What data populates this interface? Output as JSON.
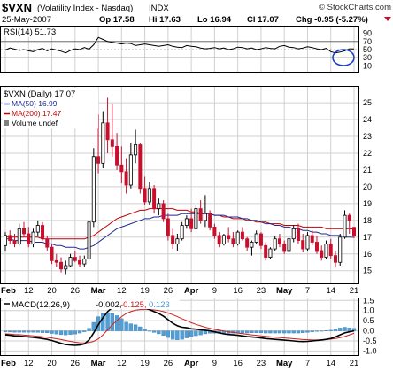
{
  "header": {
    "symbol": "$VXN",
    "name": "(Volatility Index - Nasdaq)",
    "exchange": "INDX",
    "source": "© StockCharts.com",
    "date": "25-May-2007",
    "open": "Op 17.58",
    "high": "Hi 17.63",
    "low": "Lo 16.94",
    "close": "Cl 17.07",
    "change": "Chg -0.95 (-5.27%)"
  },
  "rsi_panel": {
    "label": "RSI(14) 51.73",
    "ticks": [
      "90",
      "70",
      "50",
      "30",
      "10"
    ]
  },
  "price_panel": {
    "label": "$VXN (Daily) 17.07",
    "legend": [
      {
        "label": "MA(50) 16.99",
        "color": "#1f2a8c"
      },
      {
        "label": "MA(200) 17.47",
        "color": "#c00000"
      },
      {
        "label": "Volume undef",
        "color": "#808080"
      }
    ],
    "ticks": [
      "25",
      "24",
      "23",
      "22",
      "21",
      "20",
      "19",
      "18",
      "17",
      "16",
      "15"
    ]
  },
  "macd_panel": {
    "label": "MACD(12,26,9)",
    "value1": "-0.002,",
    "value2": "-0.125,",
    "value3": "0.123",
    "ticks": [
      "1.5",
      "1.0",
      "0.5",
      "0.0",
      "-0.5",
      "-1.0"
    ]
  },
  "x_axis": {
    "labels": [
      "Feb",
      "12",
      "20",
      "26",
      "Mar",
      "12",
      "19",
      "26",
      "Apr",
      "9",
      "16",
      "23",
      "May",
      "7",
      "14",
      "21"
    ]
  },
  "colors": {
    "up": "#000000",
    "down": "#c8102e",
    "ma50": "#1f2a8c",
    "ma200": "#c00000",
    "macd": "#000000",
    "signal": "#d02020",
    "histogram": "#4f9fd6",
    "grid": "#d0d0d0"
  },
  "chart_data": [
    {
      "type": "line",
      "name": "RSI(14)",
      "ylim": [
        0,
        100
      ],
      "reference_lines": [
        70,
        50,
        30
      ],
      "values": [
        49,
        54,
        51,
        48,
        50,
        47,
        45,
        50,
        53,
        47,
        52,
        49,
        46,
        42,
        48,
        52,
        50,
        55,
        51,
        62,
        80,
        75,
        70,
        68,
        66,
        64,
        66,
        65,
        60,
        62,
        64,
        62,
        60,
        58,
        60,
        62,
        58,
        56,
        55,
        60,
        58,
        57,
        54,
        52,
        53,
        55,
        52,
        54,
        50,
        52,
        56,
        55,
        52,
        54,
        50,
        52,
        55,
        53,
        52,
        58,
        60,
        56,
        55,
        52,
        54,
        57,
        55,
        52,
        50,
        53,
        45,
        42,
        44,
        47,
        52,
        51.73
      ]
    },
    {
      "type": "candlestick",
      "name": "$VXN (Daily)",
      "ylim": [
        14.3,
        25.9
      ],
      "x_labels": [
        "Feb",
        "12",
        "20",
        "26",
        "Mar",
        "12",
        "19",
        "26",
        "Apr",
        "9",
        "16",
        "23",
        "May",
        "7",
        "14",
        "21"
      ],
      "candles": [
        [
          16.5,
          17.3,
          16.2,
          17.1
        ],
        [
          17.1,
          17.4,
          16.6,
          16.8
        ],
        [
          16.8,
          17.2,
          16.4,
          16.6
        ],
        [
          16.6,
          17.8,
          16.5,
          17.5
        ],
        [
          17.5,
          17.9,
          17.0,
          17.2
        ],
        [
          17.2,
          17.6,
          16.4,
          16.6
        ],
        [
          16.6,
          17.5,
          16.4,
          17.3
        ],
        [
          17.3,
          18.0,
          17.1,
          17.7
        ],
        [
          17.7,
          17.9,
          16.8,
          16.9
        ],
        [
          16.9,
          17.1,
          16.2,
          16.4
        ],
        [
          16.4,
          16.6,
          15.4,
          15.6
        ],
        [
          15.6,
          16.0,
          15.2,
          15.5
        ],
        [
          15.5,
          15.8,
          14.9,
          15.1
        ],
        [
          15.1,
          15.6,
          14.8,
          15.3
        ],
        [
          15.3,
          16.0,
          15.2,
          15.8
        ],
        [
          15.8,
          16.2,
          15.5,
          15.6
        ],
        [
          15.6,
          15.9,
          15.2,
          15.4
        ],
        [
          15.4,
          15.9,
          15.2,
          15.7
        ],
        [
          15.7,
          18.0,
          15.7,
          17.9
        ],
        [
          17.9,
          22.3,
          17.6,
          21.8
        ],
        [
          21.8,
          24.3,
          20.8,
          21.4
        ],
        [
          21.4,
          24.5,
          21.1,
          23.8
        ],
        [
          23.8,
          25.3,
          22.0,
          22.8
        ],
        [
          22.8,
          24.9,
          21.8,
          22.4
        ],
        [
          22.4,
          23.2,
          21.0,
          21.3
        ],
        [
          21.3,
          22.4,
          20.2,
          20.9
        ],
        [
          20.9,
          21.7,
          19.6,
          20.1
        ],
        [
          20.1,
          22.6,
          19.9,
          21.9
        ],
        [
          21.9,
          23.4,
          21.4,
          22.5
        ],
        [
          22.5,
          22.6,
          19.6,
          19.9
        ],
        [
          19.9,
          20.6,
          18.9,
          19.1
        ],
        [
          19.1,
          20.3,
          18.9,
          19.9
        ],
        [
          19.9,
          20.1,
          18.4,
          18.7
        ],
        [
          18.7,
          19.3,
          18.3,
          19.0
        ],
        [
          19.0,
          19.2,
          17.9,
          18.1
        ],
        [
          18.1,
          18.4,
          16.8,
          17.1
        ],
        [
          17.1,
          17.5,
          16.3,
          16.6
        ],
        [
          16.6,
          17.2,
          16.2,
          16.9
        ],
        [
          16.9,
          17.9,
          16.8,
          17.7
        ],
        [
          17.7,
          18.3,
          17.5,
          18.1
        ],
        [
          18.1,
          18.7,
          17.3,
          17.5
        ],
        [
          17.5,
          18.9,
          17.5,
          18.7
        ],
        [
          18.7,
          19.2,
          17.8,
          18.0
        ],
        [
          18.0,
          19.5,
          17.6,
          18.4
        ],
        [
          18.4,
          18.6,
          17.4,
          17.6
        ],
        [
          17.6,
          17.8,
          16.9,
          17.1
        ],
        [
          17.1,
          17.3,
          16.4,
          16.6
        ],
        [
          16.6,
          17.2,
          16.5,
          17.1
        ],
        [
          17.1,
          17.6,
          16.7,
          16.9
        ],
        [
          16.9,
          17.3,
          16.4,
          16.6
        ],
        [
          16.6,
          17.4,
          16.5,
          17.3
        ],
        [
          17.3,
          17.6,
          16.8,
          16.9
        ],
        [
          16.9,
          17.0,
          16.2,
          16.4
        ],
        [
          16.4,
          16.8,
          15.9,
          16.7
        ],
        [
          16.7,
          17.4,
          16.6,
          17.2
        ],
        [
          17.2,
          17.3,
          16.3,
          16.5
        ],
        [
          16.5,
          16.7,
          15.6,
          15.8
        ],
        [
          15.8,
          16.4,
          15.7,
          16.3
        ],
        [
          16.3,
          17.1,
          16.2,
          16.9
        ],
        [
          16.9,
          17.2,
          16.4,
          16.6
        ],
        [
          16.6,
          16.8,
          16.0,
          16.2
        ],
        [
          16.2,
          17.0,
          16.1,
          16.9
        ],
        [
          16.9,
          17.7,
          16.7,
          17.5
        ],
        [
          17.5,
          17.8,
          16.6,
          16.8
        ],
        [
          16.8,
          17.2,
          16.1,
          16.3
        ],
        [
          16.3,
          17.3,
          16.2,
          17.1
        ],
        [
          17.1,
          17.4,
          16.5,
          16.7
        ],
        [
          16.7,
          17.1,
          16.0,
          16.2
        ],
        [
          16.2,
          16.5,
          15.6,
          15.8
        ],
        [
          15.8,
          16.8,
          15.7,
          16.6
        ],
        [
          16.6,
          16.9,
          15.7,
          15.9
        ],
        [
          15.9,
          16.2,
          15.2,
          15.5
        ],
        [
          15.5,
          17.2,
          15.3,
          17.0
        ],
        [
          17.0,
          18.6,
          16.9,
          18.3
        ],
        [
          18.3,
          18.4,
          17.2,
          18.0
        ],
        [
          17.58,
          17.63,
          16.94,
          17.07
        ]
      ],
      "ma50": [
        16.9,
        16.9,
        16.8,
        16.8,
        16.8,
        16.8,
        16.7,
        16.7,
        16.7,
        16.6,
        16.6,
        16.5,
        16.5,
        16.4,
        16.4,
        16.4,
        16.3,
        16.3,
        16.4,
        16.5,
        16.7,
        16.9,
        17.1,
        17.3,
        17.5,
        17.6,
        17.7,
        17.8,
        17.9,
        18.0,
        18.1,
        18.1,
        18.2,
        18.2,
        18.3,
        18.3,
        18.3,
        18.3,
        18.4,
        18.4,
        18.4,
        18.4,
        18.4,
        18.4,
        18.4,
        18.3,
        18.3,
        18.3,
        18.2,
        18.2,
        18.2,
        18.1,
        18.1,
        18.0,
        18.0,
        17.9,
        17.8,
        17.8,
        17.7,
        17.7,
        17.6,
        17.6,
        17.5,
        17.5,
        17.4,
        17.4,
        17.3,
        17.3,
        17.2,
        17.2,
        17.1,
        17.1,
        17.1,
        17.0,
        17.0,
        16.99
      ],
      "ma200": [
        17.0,
        17.0,
        17.0,
        17.0,
        17.0,
        17.0,
        17.0,
        17.0,
        16.9,
        16.9,
        16.9,
        16.9,
        16.9,
        16.9,
        16.9,
        16.9,
        16.9,
        16.9,
        17.0,
        17.1,
        17.3,
        17.5,
        17.7,
        17.9,
        18.1,
        18.2,
        18.3,
        18.4,
        18.5,
        18.6,
        18.6,
        18.7,
        18.7,
        18.7,
        18.7,
        18.7,
        18.7,
        18.6,
        18.6,
        18.6,
        18.5,
        18.5,
        18.4,
        18.4,
        18.4,
        18.3,
        18.3,
        18.2,
        18.2,
        18.1,
        18.1,
        18.1,
        18.0,
        18.0,
        17.9,
        17.9,
        17.9,
        17.8,
        17.8,
        17.8,
        17.7,
        17.7,
        17.7,
        17.7,
        17.6,
        17.6,
        17.6,
        17.6,
        17.6,
        17.5,
        17.5,
        17.5,
        17.5,
        17.5,
        17.5,
        17.47
      ]
    },
    {
      "type": "line",
      "name": "MACD(12,26,9)",
      "ylim": [
        -1.2,
        1.6
      ],
      "macd": [
        -0.2,
        -0.22,
        -0.25,
        -0.26,
        -0.28,
        -0.3,
        -0.32,
        -0.35,
        -0.38,
        -0.42,
        -0.48,
        -0.55,
        -0.62,
        -0.68,
        -0.7,
        -0.72,
        -0.7,
        -0.65,
        -0.45,
        -0.1,
        0.3,
        0.65,
        0.95,
        1.15,
        1.25,
        1.3,
        1.28,
        1.3,
        1.32,
        1.25,
        1.15,
        1.05,
        0.95,
        0.85,
        0.72,
        0.55,
        0.38,
        0.25,
        0.18,
        0.15,
        0.1,
        0.08,
        0.05,
        0.03,
        0.0,
        -0.05,
        -0.1,
        -0.15,
        -0.18,
        -0.2,
        -0.22,
        -0.25,
        -0.28,
        -0.3,
        -0.32,
        -0.35,
        -0.38,
        -0.4,
        -0.42,
        -0.44,
        -0.46,
        -0.48,
        -0.5,
        -0.52,
        -0.53,
        -0.52,
        -0.5,
        -0.48,
        -0.45,
        -0.42,
        -0.38,
        -0.3,
        -0.2,
        -0.1,
        -0.05,
        -0.002
      ],
      "signal": [
        -0.15,
        -0.16,
        -0.18,
        -0.19,
        -0.21,
        -0.23,
        -0.25,
        -0.27,
        -0.29,
        -0.32,
        -0.35,
        -0.39,
        -0.43,
        -0.48,
        -0.52,
        -0.56,
        -0.59,
        -0.6,
        -0.58,
        -0.52,
        -0.4,
        -0.2,
        0.05,
        0.3,
        0.5,
        0.7,
        0.85,
        0.95,
        1.02,
        1.05,
        1.06,
        1.05,
        1.03,
        1.0,
        0.95,
        0.88,
        0.8,
        0.7,
        0.6,
        0.5,
        0.4,
        0.32,
        0.25,
        0.18,
        0.12,
        0.07,
        0.03,
        -0.01,
        -0.05,
        -0.08,
        -0.11,
        -0.14,
        -0.17,
        -0.2,
        -0.22,
        -0.25,
        -0.27,
        -0.29,
        -0.31,
        -0.33,
        -0.35,
        -0.37,
        -0.39,
        -0.41,
        -0.43,
        -0.44,
        -0.45,
        -0.45,
        -0.44,
        -0.43,
        -0.41,
        -0.38,
        -0.34,
        -0.28,
        -0.2,
        -0.125
      ],
      "histogram": [
        -0.05,
        -0.06,
        -0.07,
        -0.07,
        -0.07,
        -0.07,
        -0.07,
        -0.08,
        -0.09,
        -0.1,
        -0.13,
        -0.16,
        -0.19,
        -0.2,
        -0.18,
        -0.16,
        -0.11,
        -0.05,
        0.13,
        0.42,
        0.7,
        0.85,
        0.9,
        0.85,
        0.75,
        0.6,
        0.43,
        0.35,
        0.3,
        0.2,
        0.09,
        0.0,
        -0.08,
        -0.15,
        -0.23,
        -0.33,
        -0.42,
        -0.45,
        -0.42,
        -0.35,
        -0.3,
        -0.24,
        -0.2,
        -0.15,
        -0.12,
        -0.12,
        -0.13,
        -0.14,
        -0.13,
        -0.12,
        -0.11,
        -0.11,
        -0.11,
        -0.1,
        -0.1,
        -0.1,
        -0.11,
        -0.11,
        -0.11,
        -0.11,
        -0.11,
        -0.11,
        -0.11,
        -0.11,
        -0.1,
        -0.08,
        -0.05,
        -0.03,
        -0.01,
        0.01,
        0.03,
        0.08,
        0.14,
        0.18,
        0.15,
        0.123
      ]
    }
  ]
}
